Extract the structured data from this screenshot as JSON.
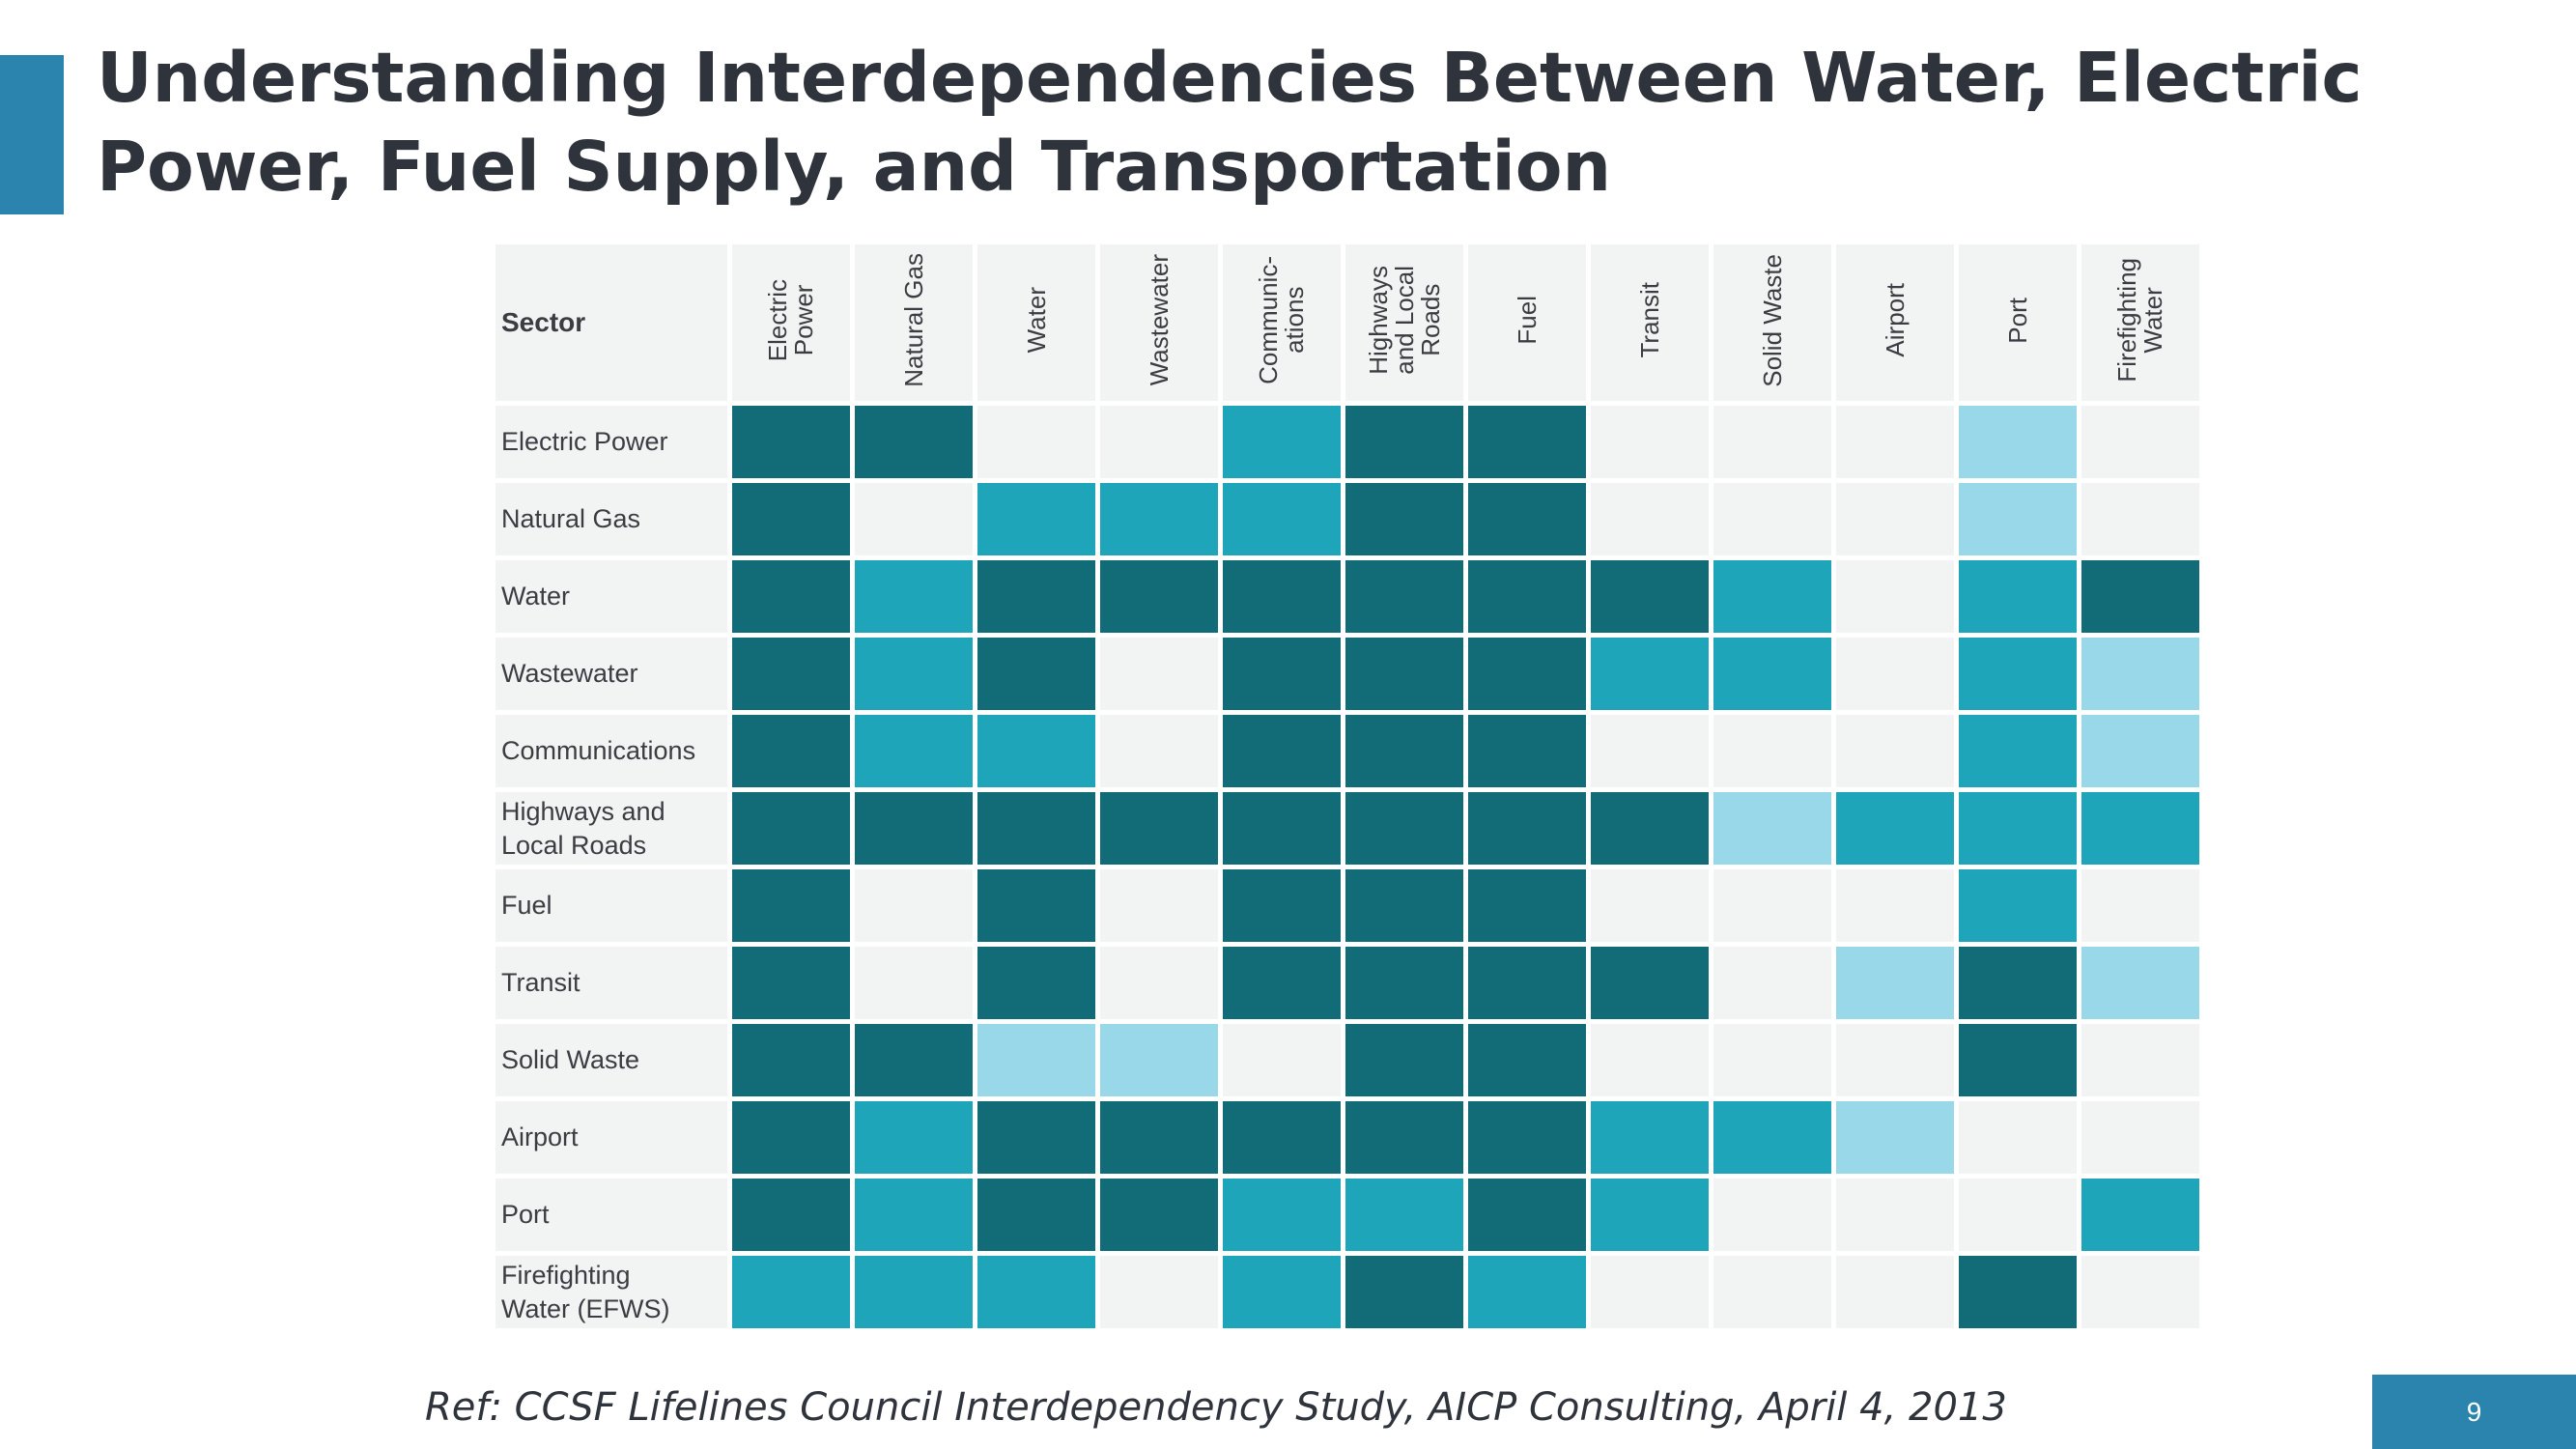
{
  "slide": {
    "title": "Understanding Interdependencies Between Water, Electric Power, Fuel Supply, and Transportation",
    "reference": "Ref: CCSF Lifelines Council Interdependency Study, AICP Consulting, April 4, 2013",
    "page_number": "9"
  },
  "colors": {
    "accent_bar": "#2b84ad",
    "level_3": "#116c78",
    "level_2": "#1fa5b9",
    "level_1": "#98d8e9",
    "level_0": "#f2f3f3"
  },
  "chart_data": {
    "type": "heatmap",
    "corner_label": "Sector",
    "columns": [
      "Electric\nPower",
      "Natural Gas",
      "Water",
      "Wastewater",
      "Communic-\nations",
      "Highways\nand Local\nRoads",
      "Fuel",
      "Transit",
      "Solid Waste",
      "Airport",
      "Port",
      "Firefighting\nWater"
    ],
    "rows": [
      "Electric Power",
      "Natural Gas",
      "Water",
      "Wastewater",
      "Communications",
      "Highways and\nLocal Roads",
      "Fuel",
      "Transit",
      "Solid Waste",
      "Airport",
      "Port",
      "Firefighting\nWater (EFWS)"
    ],
    "levels": [
      [
        3,
        3,
        0,
        0,
        2,
        3,
        3,
        0,
        0,
        0,
        1,
        0
      ],
      [
        3,
        0,
        2,
        2,
        2,
        3,
        3,
        0,
        0,
        0,
        1,
        0
      ],
      [
        3,
        2,
        3,
        3,
        3,
        3,
        3,
        3,
        2,
        0,
        2,
        3
      ],
      [
        3,
        2,
        3,
        0,
        3,
        3,
        3,
        2,
        2,
        0,
        2,
        1
      ],
      [
        3,
        2,
        2,
        0,
        3,
        3,
        3,
        0,
        0,
        0,
        2,
        1
      ],
      [
        3,
        3,
        3,
        3,
        3,
        3,
        3,
        3,
        1,
        2,
        2,
        2
      ],
      [
        3,
        0,
        3,
        0,
        3,
        3,
        3,
        0,
        0,
        0,
        2,
        0
      ],
      [
        3,
        0,
        3,
        0,
        3,
        3,
        3,
        3,
        0,
        1,
        3,
        1
      ],
      [
        3,
        3,
        1,
        1,
        0,
        3,
        3,
        0,
        0,
        0,
        3,
        0
      ],
      [
        3,
        2,
        3,
        3,
        3,
        3,
        3,
        2,
        2,
        1,
        0,
        0
      ],
      [
        3,
        2,
        3,
        3,
        2,
        2,
        3,
        2,
        0,
        0,
        0,
        2
      ],
      [
        2,
        2,
        2,
        0,
        2,
        3,
        2,
        0,
        0,
        0,
        3,
        0
      ]
    ],
    "title": "",
    "legend": "none"
  }
}
